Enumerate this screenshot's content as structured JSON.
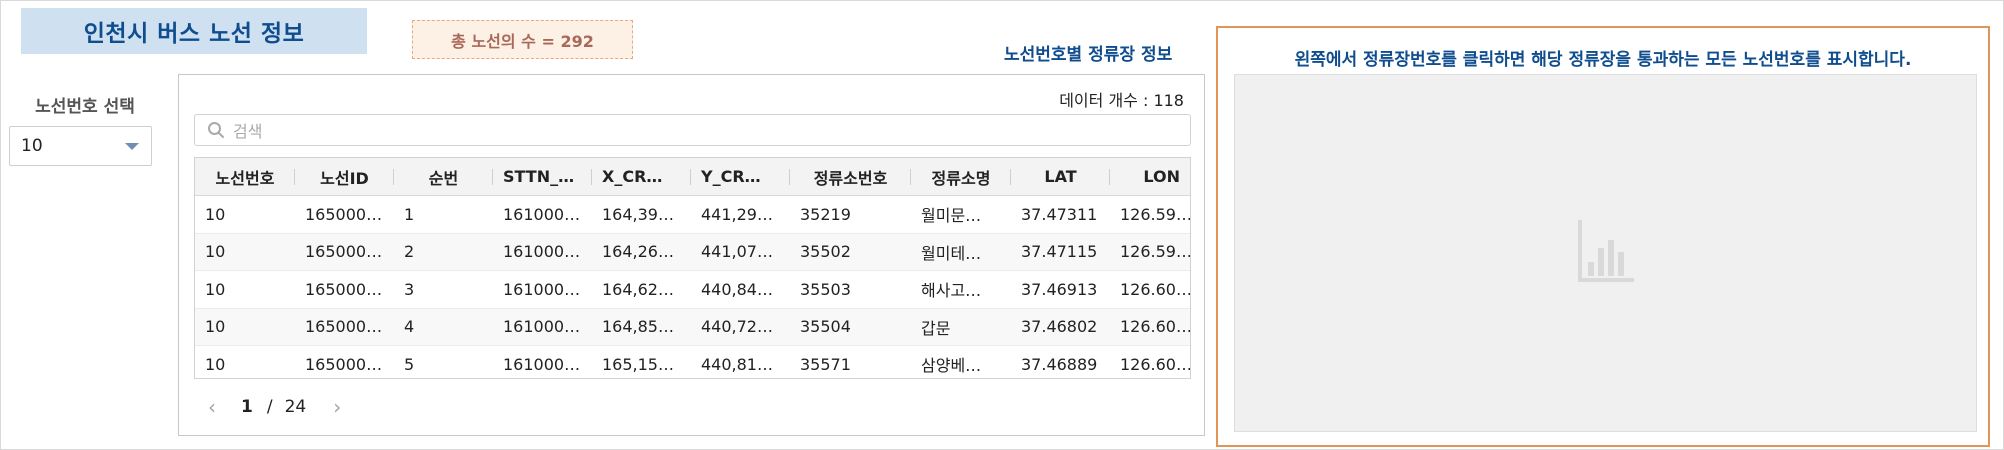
{
  "header": {
    "title": "인천시 버스 노선 정보",
    "total_routes": "총 노선의 수 = 292"
  },
  "route_select": {
    "label": "노선번호 선택",
    "value": "10"
  },
  "stops_section": {
    "heading": "노선번호별 정류장 정보",
    "data_count": "데이터 개수 : 118",
    "search_placeholder": "검색",
    "columns": [
      "노선번호",
      "노선ID",
      "순번",
      "STTN_…",
      "X_CR…",
      "Y_CR…",
      "정류소번호",
      "정류소명",
      "LAT",
      "LON"
    ],
    "rows": [
      [
        "10",
        "165000…",
        "1",
        "161000…",
        "164,39…",
        "441,29…",
        "35219",
        "월미문…",
        "37.47311",
        "126.59…"
      ],
      [
        "10",
        "165000…",
        "2",
        "161000…",
        "164,26…",
        "441,07…",
        "35502",
        "월미테…",
        "37.47115",
        "126.59…"
      ],
      [
        "10",
        "165000…",
        "3",
        "161000…",
        "164,62…",
        "440,84…",
        "35503",
        "해사고…",
        "37.46913",
        "126.60…"
      ],
      [
        "10",
        "165000…",
        "4",
        "161000…",
        "164,85…",
        "440,72…",
        "35504",
        "갑문",
        "37.46802",
        "126.60…"
      ],
      [
        "10",
        "165000…",
        "5",
        "161000…",
        "165,15…",
        "440,81…",
        "35571",
        "삼양베…",
        "37.46889",
        "126.60…"
      ]
    ],
    "pagination": {
      "current": "1",
      "separator": "/",
      "total": "24"
    }
  },
  "detail_panel": {
    "heading": "왼쪽에서 정류장번호를 클릭하면 해당 정류장을 통과하는 모든 노선번호를 표시합니다.",
    "placeholder_icon": "bar-chart-icon"
  },
  "colors": {
    "title_bg": "#cfe0f1",
    "title_text": "#0f4d8f",
    "count_bg": "#fdf0e4",
    "count_text": "#a8685a",
    "panel_accent": "#e39555"
  }
}
